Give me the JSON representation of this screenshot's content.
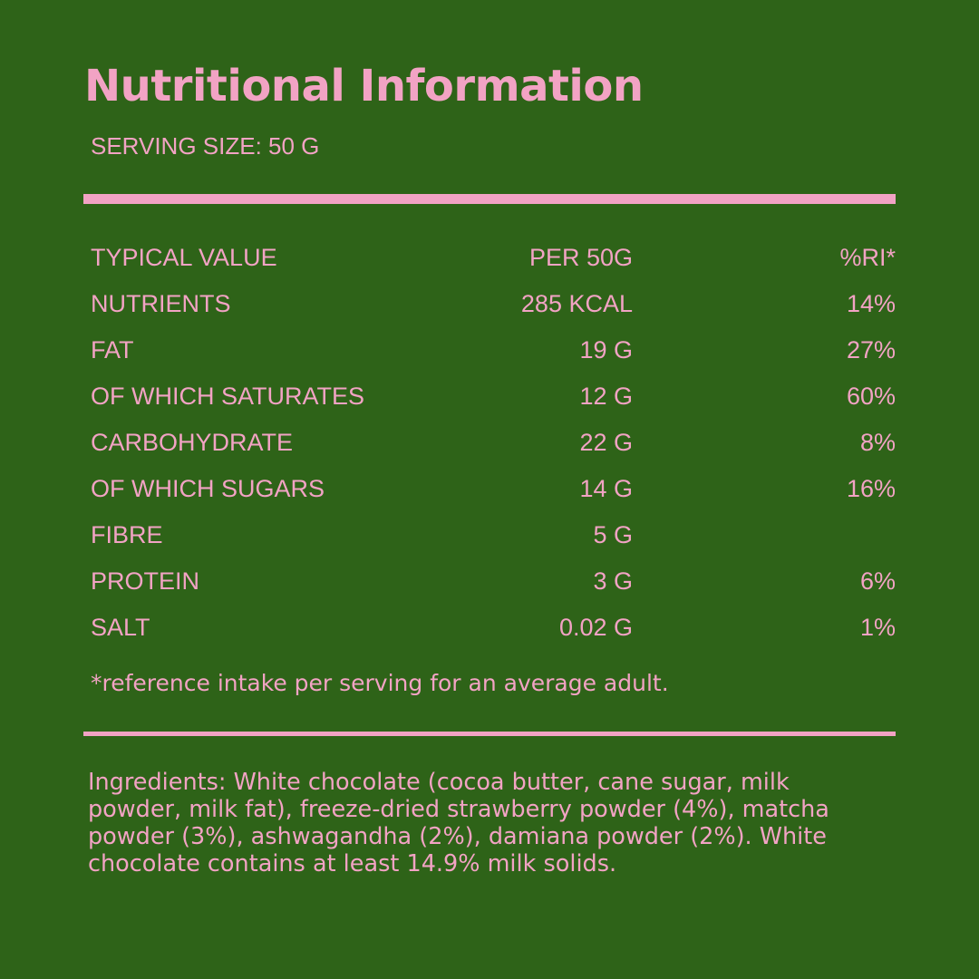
{
  "title": "Nutritional Information",
  "serving_size": "SERVING SIZE: 50 G",
  "colors": {
    "background": "#2e6318",
    "accent": "#f2a3c4"
  },
  "table": {
    "header": {
      "name": "TYPICAL VALUE",
      "per": "PER 50G",
      "ri": "%RI*"
    },
    "rows": [
      {
        "name": "NUTRIENTS",
        "per": "285 KCAL",
        "ri": "14%"
      },
      {
        "name": "FAT",
        "per": "19 G",
        "ri": "27%"
      },
      {
        "name": "OF WHICH SATURATES",
        "per": "12 G",
        "ri": "60%"
      },
      {
        "name": "CARBOHYDRATE",
        "per": "22 G",
        "ri": "8%"
      },
      {
        "name": "OF WHICH SUGARS",
        "per": "14 G",
        "ri": "16%"
      },
      {
        "name": "FIBRE",
        "per": "5 G",
        "ri": ""
      },
      {
        "name": "PROTEIN",
        "per": "3 G",
        "ri": "6%"
      },
      {
        "name": "SALT",
        "per": "0.02 G",
        "ri": "1%"
      }
    ]
  },
  "footnote": "*reference intake per serving for an average adult.",
  "ingredients": "Ingredients: White chocolate (cocoa butter, cane sugar, milk powder, milk fat), freeze-dried strawberry powder (4%), matcha powder (3%), ashwagandha (2%), damiana powder (2%). White chocolate contains at least 14.9% milk solids."
}
